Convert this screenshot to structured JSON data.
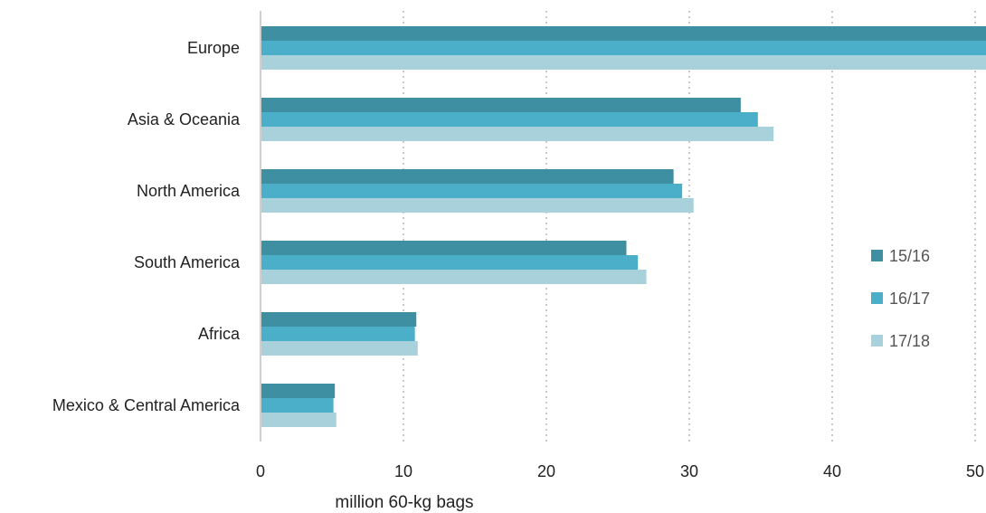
{
  "chart_data": {
    "type": "bar",
    "orientation": "horizontal",
    "categories": [
      "Europe",
      "Asia & Oceania",
      "North America",
      "South America",
      "Africa",
      "Mexico & Central America"
    ],
    "series": [
      {
        "name": "15/16",
        "color": "#3f8fa3",
        "values": [
          52.0,
          33.6,
          28.9,
          25.6,
          10.9,
          5.2
        ]
      },
      {
        "name": "16/17",
        "color": "#4bafc9",
        "values": [
          52.5,
          34.8,
          29.5,
          26.4,
          10.8,
          5.1
        ]
      },
      {
        "name": "17/18",
        "color": "#a9d1dc",
        "values": [
          53.0,
          35.9,
          30.3,
          27.0,
          11.0,
          5.3
        ]
      }
    ],
    "x_ticks": [
      0,
      10,
      20,
      30,
      40,
      50
    ],
    "xlim": [
      0,
      51
    ],
    "xlabel": "million 60-kg bags",
    "ylabel": "",
    "title": "",
    "grid": "vertical-dotted",
    "legend_position": "right"
  }
}
